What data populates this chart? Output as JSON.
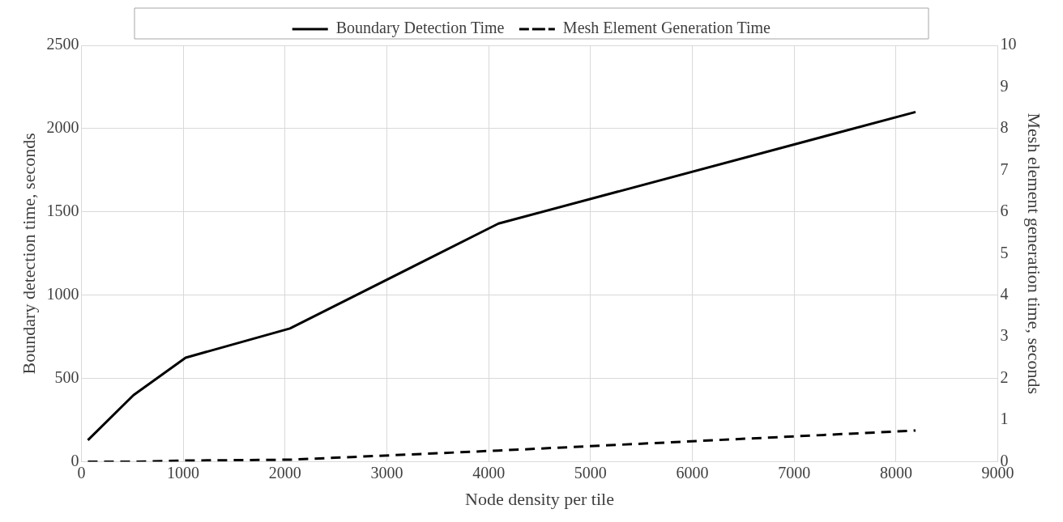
{
  "chart_data": {
    "type": "line",
    "xlabel": "Node density per tile",
    "ylabel": "Boundary detection time, seconds",
    "y2label": "Mesh element generation time, seconds",
    "x": [
      64,
      512,
      1024,
      2048,
      4096,
      8192
    ],
    "series": [
      {
        "name": "Boundary Detection Time",
        "color": "#000000",
        "values": [
          130,
          400,
          625,
          800,
          1430,
          2100
        ],
        "line_style": "solid"
      },
      {
        "name": "Mesh Element Generation Time",
        "color": "#000000",
        "values": [
          0,
          0,
          0.03,
          0.05,
          0.27,
          0.75
        ],
        "axis": "y2",
        "line_style": "dashed"
      }
    ],
    "xlim": [
      0,
      9000
    ],
    "xticks": [
      0,
      1000,
      2000,
      3000,
      4000,
      5000,
      6000,
      7000,
      8000,
      9000
    ],
    "ylim": [
      0,
      2500
    ],
    "yticks": [
      0,
      500,
      1000,
      1500,
      2000,
      2500
    ],
    "y2lim": [
      0,
      10
    ],
    "y2ticks": [
      0,
      1,
      2,
      3,
      4,
      5,
      6,
      7,
      8,
      9,
      10
    ],
    "grid": true,
    "legend": "top",
    "marker": "none"
  }
}
